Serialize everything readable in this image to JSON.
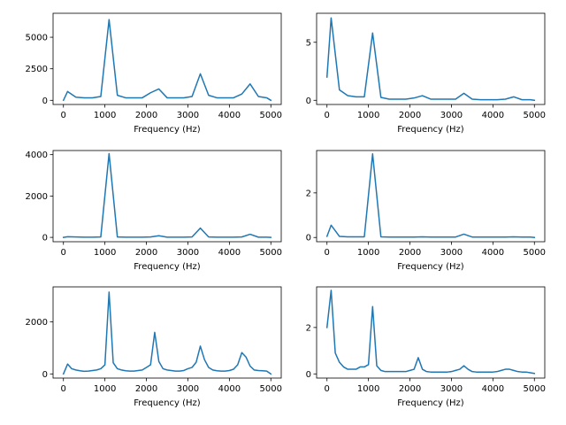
{
  "colors": {
    "series": "#1f77b4"
  },
  "chart_data": [
    {
      "type": "line",
      "xlabel": "Frequency (Hz)",
      "xlim": [
        -250,
        5250
      ],
      "ylim": [
        -330,
        6900
      ],
      "xticks": [
        0,
        1000,
        2000,
        3000,
        4000,
        5000
      ],
      "yticks": [
        0,
        2500,
        5000
      ],
      "grid": false,
      "series": [
        {
          "x": [
            0,
            100,
            300,
            500,
            700,
            900,
            1100,
            1300,
            1500,
            1700,
            1900,
            2100,
            2300,
            2500,
            2700,
            2900,
            3100,
            3300,
            3500,
            3700,
            3900,
            4100,
            4300,
            4500,
            4700,
            4900,
            5000
          ],
          "values": [
            0,
            700,
            250,
            200,
            200,
            300,
            6400,
            400,
            200,
            200,
            200,
            600,
            900,
            200,
            200,
            200,
            300,
            2100,
            400,
            200,
            200,
            200,
            500,
            1300,
            300,
            200,
            0
          ]
        }
      ]
    },
    {
      "type": "line",
      "xlabel": "Frequency (Hz)",
      "xlim": [
        -250,
        5250
      ],
      "ylim": [
        -0.36,
        7.5
      ],
      "xticks": [
        0,
        1000,
        2000,
        3000,
        4000,
        5000
      ],
      "yticks": [
        0,
        5
      ],
      "grid": false,
      "series": [
        {
          "x": [
            0,
            100,
            300,
            500,
            700,
            900,
            1100,
            1300,
            1500,
            1700,
            1900,
            2100,
            2300,
            2500,
            2700,
            2900,
            3100,
            3300,
            3500,
            3700,
            3900,
            4100,
            4300,
            4500,
            4700,
            4900,
            5000
          ],
          "values": [
            2.0,
            7.1,
            0.9,
            0.4,
            0.3,
            0.3,
            5.8,
            0.25,
            0.1,
            0.1,
            0.1,
            0.2,
            0.4,
            0.1,
            0.1,
            0.1,
            0.1,
            0.6,
            0.1,
            0.05,
            0.05,
            0.05,
            0.1,
            0.3,
            0.05,
            0.05,
            0
          ]
        }
      ]
    },
    {
      "type": "line",
      "xlabel": "Frequency (Hz)",
      "xlim": [
        -250,
        5250
      ],
      "ylim": [
        -210,
        4200
      ],
      "xticks": [
        0,
        1000,
        2000,
        3000,
        4000,
        5000
      ],
      "yticks": [
        0,
        2000,
        4000
      ],
      "grid": false,
      "series": [
        {
          "x": [
            0,
            100,
            300,
            500,
            700,
            900,
            1100,
            1300,
            1500,
            1700,
            1900,
            2100,
            2300,
            2500,
            2700,
            2900,
            3100,
            3300,
            3500,
            3700,
            3900,
            4100,
            4300,
            4500,
            4700,
            4900,
            5000
          ],
          "values": [
            0,
            30,
            20,
            10,
            10,
            20,
            4050,
            20,
            10,
            10,
            10,
            20,
            80,
            10,
            10,
            10,
            20,
            450,
            20,
            10,
            10,
            10,
            20,
            150,
            10,
            10,
            0
          ]
        }
      ]
    },
    {
      "type": "line",
      "xlabel": "Frequency (Hz)",
      "xlim": [
        -250,
        5250
      ],
      "ylim": [
        -0.19,
        3.9
      ],
      "xticks": [
        0,
        1000,
        2000,
        3000,
        4000,
        5000
      ],
      "yticks": [
        0,
        2
      ],
      "grid": false,
      "series": [
        {
          "x": [
            0,
            100,
            300,
            500,
            700,
            900,
            1100,
            1300,
            1500,
            1700,
            1900,
            2100,
            2300,
            2500,
            2700,
            2900,
            3100,
            3300,
            3500,
            3700,
            3900,
            4100,
            4300,
            4500,
            4700,
            4900,
            5000
          ],
          "values": [
            0.05,
            0.55,
            0.05,
            0.03,
            0.03,
            0.03,
            3.75,
            0.03,
            0.02,
            0.02,
            0.02,
            0.02,
            0.03,
            0.02,
            0.02,
            0.02,
            0.02,
            0.15,
            0.02,
            0.02,
            0.02,
            0.02,
            0.02,
            0.03,
            0.02,
            0.02,
            0
          ]
        }
      ]
    },
    {
      "type": "line",
      "xlabel": "Frequency (Hz)",
      "xlim": [
        -250,
        5250
      ],
      "ylim": [
        -160,
        3350
      ],
      "xticks": [
        0,
        1000,
        2000,
        3000,
        4000,
        5000
      ],
      "yticks": [
        0,
        2000
      ],
      "grid": false,
      "series": [
        {
          "x": [
            0,
            100,
            200,
            300,
            400,
            500,
            600,
            700,
            800,
            900,
            1000,
            1100,
            1200,
            1300,
            1400,
            1500,
            1600,
            1700,
            1800,
            1900,
            2000,
            2100,
            2200,
            2300,
            2400,
            2500,
            2600,
            2700,
            2800,
            2900,
            3000,
            3100,
            3200,
            3300,
            3400,
            3500,
            3600,
            3700,
            3800,
            3900,
            4000,
            4100,
            4200,
            4300,
            4400,
            4500,
            4600,
            4700,
            4800,
            4900,
            5000
          ],
          "values": [
            0,
            380,
            200,
            150,
            120,
            100,
            110,
            130,
            150,
            200,
            350,
            3150,
            430,
            200,
            150,
            120,
            110,
            110,
            130,
            150,
            250,
            350,
            1600,
            480,
            200,
            150,
            130,
            110,
            110,
            130,
            200,
            250,
            450,
            1070,
            550,
            250,
            150,
            120,
            110,
            110,
            130,
            180,
            350,
            820,
            650,
            300,
            150,
            130,
            120,
            110,
            0
          ]
        }
      ]
    },
    {
      "type": "line",
      "xlabel": "Frequency (Hz)",
      "xlim": [
        -250,
        5250
      ],
      "ylim": [
        -0.18,
        3.75
      ],
      "xticks": [
        0,
        1000,
        2000,
        3000,
        4000,
        5000
      ],
      "yticks": [
        0,
        2
      ],
      "grid": false,
      "series": [
        {
          "x": [
            0,
            100,
            200,
            300,
            400,
            500,
            600,
            700,
            800,
            900,
            1000,
            1100,
            1200,
            1300,
            1400,
            1500,
            1600,
            1700,
            1800,
            1900,
            2000,
            2100,
            2200,
            2300,
            2400,
            2500,
            2600,
            2700,
            2800,
            2900,
            3000,
            3100,
            3200,
            3300,
            3400,
            3500,
            3600,
            3700,
            3800,
            3900,
            4000,
            4100,
            4200,
            4300,
            4400,
            4500,
            4600,
            4700,
            4800,
            4900,
            5000
          ],
          "values": [
            2.0,
            3.6,
            0.9,
            0.5,
            0.3,
            0.2,
            0.2,
            0.2,
            0.3,
            0.3,
            0.4,
            2.9,
            0.35,
            0.15,
            0.1,
            0.1,
            0.1,
            0.1,
            0.1,
            0.1,
            0.15,
            0.2,
            0.7,
            0.2,
            0.1,
            0.08,
            0.08,
            0.08,
            0.08,
            0.08,
            0.1,
            0.15,
            0.2,
            0.35,
            0.2,
            0.1,
            0.08,
            0.08,
            0.08,
            0.08,
            0.08,
            0.1,
            0.15,
            0.2,
            0.2,
            0.15,
            0.1,
            0.08,
            0.08,
            0.05,
            0.02
          ]
        }
      ]
    }
  ]
}
